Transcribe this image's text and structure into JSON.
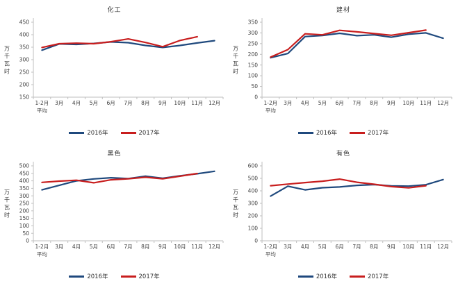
{
  "colors": {
    "axis": "#BFBFBF",
    "tick_text": "#3F3F3F",
    "title_text": "#333333",
    "series_2016": "#1F497D",
    "series_2017": "#C81E1E"
  },
  "chart_data": [
    {
      "type": "line",
      "title": "化工",
      "ylabel": "万千瓦时",
      "ymin": 150,
      "ymax": 450,
      "ystep": 50,
      "grid": false,
      "legend_position": "bottom",
      "categories": [
        "1-2月\n平均",
        "3月",
        "4月",
        "5月",
        "6月",
        "7月",
        "8月",
        "9月",
        "10月",
        "11月",
        "12月"
      ],
      "series": [
        {
          "name": "2016年",
          "color": "#1F497D",
          "values": [
            338,
            363,
            361,
            365,
            371,
            368,
            357,
            349,
            357,
            367,
            376
          ]
        },
        {
          "name": "2017年",
          "color": "#C81E1E",
          "values": [
            349,
            364,
            366,
            364,
            372,
            383,
            369,
            352,
            377,
            392,
            null
          ]
        }
      ]
    },
    {
      "type": "line",
      "title": "建材",
      "ylabel": "万千瓦时",
      "ymin": 0,
      "ymax": 350,
      "ystep": 50,
      "grid": false,
      "legend_position": "bottom",
      "categories": [
        "1-2月\n平均",
        "3月",
        "4月",
        "5月",
        "6月",
        "7月",
        "8月",
        "9月",
        "10月",
        "11月",
        "12月"
      ],
      "series": [
        {
          "name": "2016年",
          "color": "#1F497D",
          "values": [
            184,
            204,
            283,
            288,
            298,
            287,
            291,
            280,
            294,
            300,
            275
          ]
        },
        {
          "name": "2017年",
          "color": "#C81E1E",
          "values": [
            187,
            222,
            296,
            291,
            312,
            305,
            297,
            289,
            301,
            313,
            null
          ]
        }
      ]
    },
    {
      "type": "line",
      "title": "黑色",
      "ylabel": "万千瓦时",
      "ymin": 0,
      "ymax": 500,
      "ystep": 50,
      "grid": false,
      "legend_position": "bottom",
      "categories": [
        "1-2月\n平均",
        "3月",
        "4月",
        "5月",
        "6月",
        "7月",
        "8月",
        "9月",
        "10月",
        "11月",
        "12月"
      ],
      "series": [
        {
          "name": "2016年",
          "color": "#1F497D",
          "values": [
            340,
            370,
            400,
            413,
            421,
            415,
            431,
            417,
            434,
            447,
            464
          ]
        },
        {
          "name": "2017年",
          "color": "#C81E1E",
          "values": [
            390,
            398,
            404,
            387,
            407,
            414,
            424,
            414,
            431,
            449,
            null
          ]
        }
      ]
    },
    {
      "type": "line",
      "title": "有色",
      "ylabel": "万千瓦时",
      "ymin": 0,
      "ymax": 600,
      "ystep": 100,
      "grid": false,
      "legend_position": "bottom",
      "categories": [
        "1-2月\n平均",
        "3月",
        "4月",
        "5月",
        "6月",
        "7月",
        "8月",
        "9月",
        "10月",
        "11月",
        "12月"
      ],
      "series": [
        {
          "name": "2016年",
          "color": "#1F497D",
          "values": [
            358,
            437,
            408,
            425,
            431,
            444,
            450,
            440,
            438,
            449,
            490
          ]
        },
        {
          "name": "2017年",
          "color": "#C81E1E",
          "values": [
            441,
            454,
            466,
            477,
            494,
            469,
            453,
            434,
            424,
            441,
            null
          ]
        }
      ]
    }
  ]
}
